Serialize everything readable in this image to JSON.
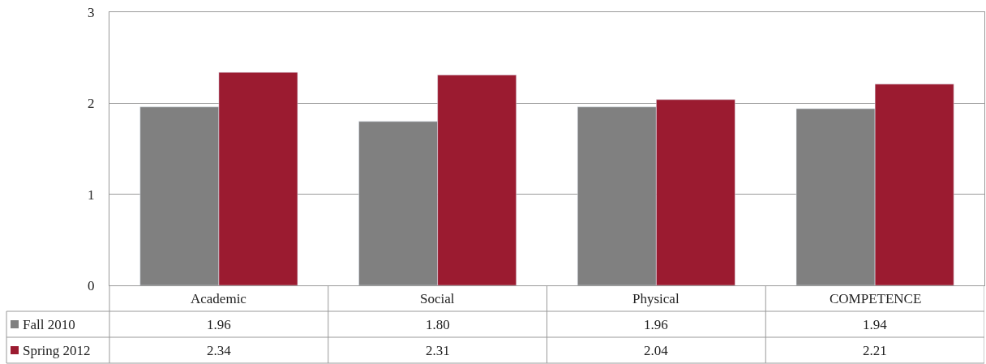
{
  "chart_data": {
    "type": "bar",
    "categories": [
      "Academic",
      "Social",
      "Physical",
      "COMPETENCE"
    ],
    "series": [
      {
        "name": "Fall 2010",
        "color": "#808080",
        "values": [
          1.96,
          1.8,
          1.96,
          1.94
        ],
        "value_labels": [
          "1.96",
          "1.80",
          "1.96",
          "1.94"
        ]
      },
      {
        "name": "Spring 2012",
        "color": "#9b1b30",
        "values": [
          2.34,
          2.31,
          2.04,
          2.21
        ],
        "value_labels": [
          "2.34",
          "2.31",
          "2.04",
          "2.21"
        ]
      }
    ],
    "ylim": [
      0,
      3
    ],
    "yticks": [
      0,
      1,
      2,
      3
    ],
    "grid": "y",
    "legend": "bottom"
  }
}
